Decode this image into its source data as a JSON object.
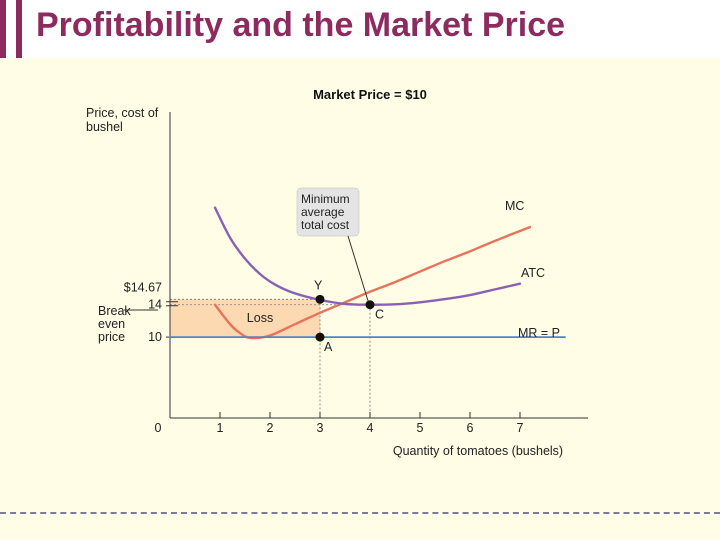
{
  "page": {
    "title": "Profitability and the Market Price",
    "colors": {
      "title": "#8e2b5e",
      "mc": "#e8735a",
      "atc": "#8a60b5",
      "mr": "#4f86c6",
      "loss_area": "#fcd9b0"
    }
  },
  "chart_data": {
    "type": "line",
    "title": "Market Price = $10",
    "ylabel": "Price, cost of bushel",
    "xlabel": "Quantity of tomatoes (bushels)",
    "xlim": [
      0,
      7.4
    ],
    "ylim": [
      0,
      30
    ],
    "x_ticks": [
      0,
      1,
      2,
      3,
      4,
      5,
      6,
      7
    ],
    "y_tick_labels": [
      {
        "value": 14.67,
        "label": "$14.67"
      },
      {
        "value": 14,
        "label": "14"
      },
      {
        "value": 10,
        "label": "10"
      }
    ],
    "series": [
      {
        "name": "MC",
        "key": "mc",
        "x": [
          0.9,
          1.2,
          1.4,
          1.6,
          2,
          2.5,
          3,
          3.5,
          4,
          4.5,
          5,
          5.5,
          6,
          6.5,
          7.2
        ],
        "y": [
          14,
          11.6,
          10.5,
          9.9,
          10.2,
          11.6,
          13,
          14.3,
          15.6,
          16.8,
          18.1,
          19.4,
          20.6,
          21.9,
          23.6
        ]
      },
      {
        "name": "ATC",
        "key": "atc",
        "x": [
          0.9,
          1.2,
          1.5,
          1.8,
          2.1,
          2.5,
          3,
          3.5,
          4,
          4.5,
          5,
          5.5,
          6,
          6.5,
          7
        ],
        "y": [
          26,
          22.3,
          19.7,
          17.8,
          16.5,
          15.4,
          14.6,
          14.1,
          14,
          14.05,
          14.3,
          14.7,
          15.2,
          15.9,
          16.6
        ]
      },
      {
        "name": "MR = P",
        "key": "mr",
        "x": [
          0,
          7.9
        ],
        "y": [
          10,
          10
        ]
      }
    ],
    "points": [
      {
        "label": "Y",
        "x": 3,
        "y": 14.67
      },
      {
        "label": "C",
        "x": 4,
        "y": 14
      },
      {
        "label": "A",
        "x": 3,
        "y": 10
      }
    ],
    "annotations": {
      "min_atc": "Minimum average total cost",
      "break_even": "Break even price",
      "loss": "Loss"
    }
  }
}
